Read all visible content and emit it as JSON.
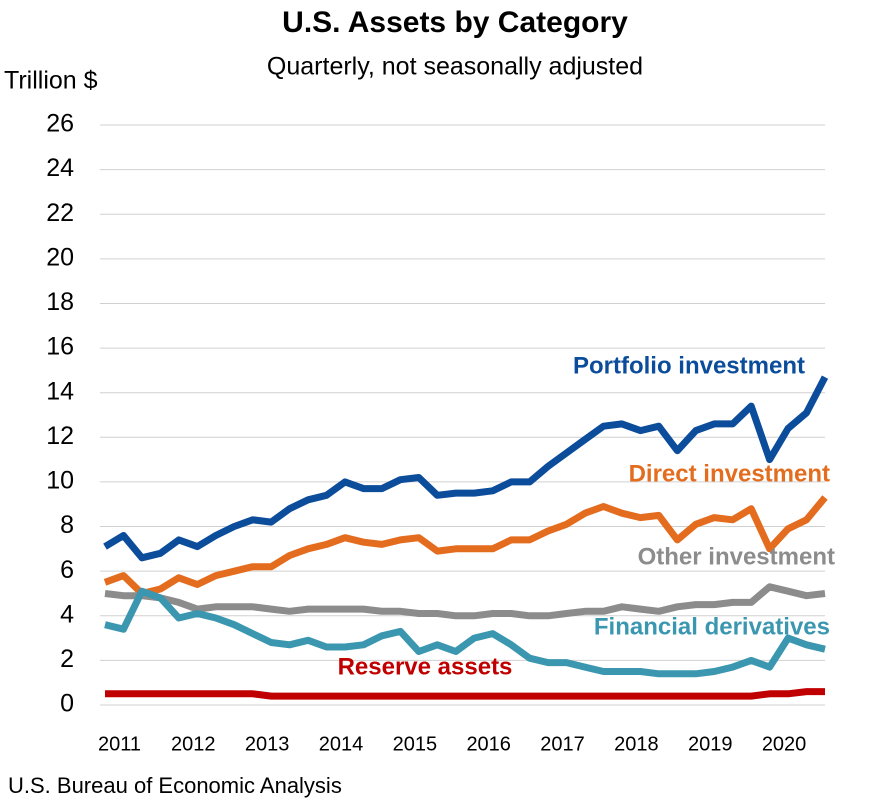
{
  "chart_data": {
    "type": "line",
    "title": "U.S. Assets by Category",
    "subtitle": "Quarterly, not seasonally adjusted",
    "y_label": "Trillion $",
    "source": "U.S. Bureau of Economic Analysis",
    "categories": [
      null,
      "2011",
      null,
      null,
      null,
      "2012",
      null,
      null,
      null,
      "2013",
      null,
      null,
      null,
      "2014",
      null,
      null,
      null,
      "2015",
      null,
      null,
      null,
      "2016",
      null,
      null,
      null,
      "2017",
      null,
      null,
      null,
      "2018",
      null,
      null,
      null,
      "2019",
      null,
      null,
      null,
      "2020",
      null,
      null
    ],
    "ylim": [
      0,
      26
    ],
    "yticks": [
      0,
      2,
      4,
      6,
      8,
      10,
      12,
      14,
      16,
      18,
      20,
      22,
      24,
      26
    ],
    "grid": true,
    "series": [
      {
        "name": "Portfolio investment",
        "color": "#0b4c9b",
        "values": [
          7.1,
          7.6,
          6.6,
          6.8,
          7.4,
          7.1,
          7.6,
          8.0,
          8.3,
          8.2,
          8.8,
          9.2,
          9.4,
          10.0,
          9.7,
          9.7,
          10.1,
          10.2,
          9.4,
          9.5,
          9.5,
          9.6,
          10.0,
          10.0,
          10.7,
          11.3,
          11.9,
          12.5,
          12.6,
          12.3,
          12.5,
          11.4,
          12.3,
          12.6,
          12.6,
          13.4,
          11.0,
          12.4,
          13.1,
          14.7
        ]
      },
      {
        "name": "Direct investment",
        "color": "#e46c1e",
        "values": [
          5.5,
          5.8,
          5.0,
          5.2,
          5.7,
          5.4,
          5.8,
          6.0,
          6.2,
          6.2,
          6.7,
          7.0,
          7.2,
          7.5,
          7.3,
          7.2,
          7.4,
          7.5,
          6.9,
          7.0,
          7.0,
          7.0,
          7.4,
          7.4,
          7.8,
          8.1,
          8.6,
          8.9,
          8.6,
          8.4,
          8.5,
          7.4,
          8.1,
          8.4,
          8.3,
          8.8,
          7.0,
          7.9,
          8.3,
          9.3
        ]
      },
      {
        "name": "Other investment",
        "color": "#8c8c8c",
        "values": [
          5.0,
          4.9,
          4.9,
          4.8,
          4.6,
          4.3,
          4.4,
          4.4,
          4.4,
          4.3,
          4.2,
          4.3,
          4.3,
          4.3,
          4.3,
          4.2,
          4.2,
          4.1,
          4.1,
          4.0,
          4.0,
          4.1,
          4.1,
          4.0,
          4.0,
          4.1,
          4.2,
          4.2,
          4.4,
          4.3,
          4.2,
          4.4,
          4.5,
          4.5,
          4.6,
          4.6,
          5.3,
          5.1,
          4.9,
          5.0
        ]
      },
      {
        "name": "Financial derivatives",
        "color": "#3b97b0",
        "values": [
          3.6,
          3.4,
          5.1,
          4.8,
          3.9,
          4.1,
          3.9,
          3.6,
          3.2,
          2.8,
          2.7,
          2.9,
          2.6,
          2.6,
          2.7,
          3.1,
          3.3,
          2.4,
          2.7,
          2.4,
          3.0,
          3.2,
          2.7,
          2.1,
          1.9,
          1.9,
          1.7,
          1.5,
          1.5,
          1.5,
          1.4,
          1.4,
          1.4,
          1.5,
          1.7,
          2.0,
          1.7,
          3.0,
          2.7,
          2.5
        ]
      },
      {
        "name": "Reserve assets",
        "color": "#c00000",
        "values": [
          0.5,
          0.5,
          0.5,
          0.5,
          0.5,
          0.5,
          0.5,
          0.5,
          0.5,
          0.4,
          0.4,
          0.4,
          0.4,
          0.4,
          0.4,
          0.4,
          0.4,
          0.4,
          0.4,
          0.4,
          0.4,
          0.4,
          0.4,
          0.4,
          0.4,
          0.4,
          0.4,
          0.4,
          0.4,
          0.4,
          0.4,
          0.4,
          0.4,
          0.4,
          0.4,
          0.4,
          0.5,
          0.5,
          0.6,
          0.6
        ]
      }
    ]
  }
}
